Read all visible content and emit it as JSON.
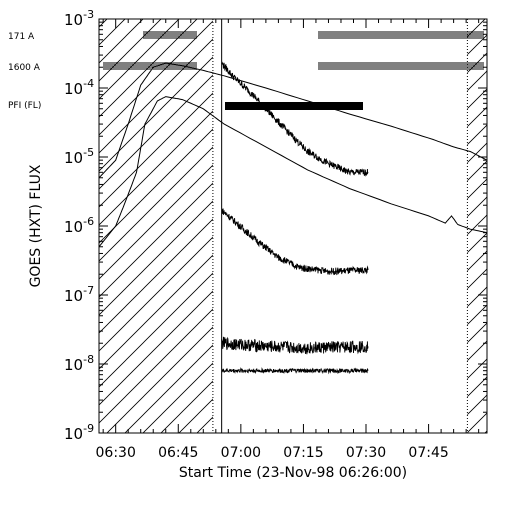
{
  "chart_data": {
    "type": "line",
    "xlabel": "Start Time (23-Nov-98 06:26:00)",
    "ylabel": "GOES (HXT) FLUX",
    "x_range_minutes_after_0626": [
      0,
      93
    ],
    "x_ticks": [
      {
        "label": "06:30",
        "t": 4
      },
      {
        "label": "06:45",
        "t": 19
      },
      {
        "label": "07:00",
        "t": 34
      },
      {
        "label": "07:15",
        "t": 49
      },
      {
        "label": "07:30",
        "t": 64
      },
      {
        "label": "07:45",
        "t": 79
      }
    ],
    "y_scale": "log",
    "y_range": [
      1e-09,
      0.001
    ],
    "y_ticks": [
      {
        "base": "10",
        "exp": "-9",
        "value": 1e-09
      },
      {
        "base": "10",
        "exp": "-8",
        "value": 1e-08
      },
      {
        "base": "10",
        "exp": "-7",
        "value": 1e-07
      },
      {
        "base": "10",
        "exp": "-6",
        "value": 1e-06
      },
      {
        "base": "10",
        "exp": "-5",
        "value": 1e-05
      },
      {
        "base": "10",
        "exp": "-4",
        "value": 0.0001
      },
      {
        "base": "10",
        "exp": "-3",
        "value": 0.001
      }
    ],
    "left_labels": [
      "171 A",
      "1600 A",
      "PFI (FL)"
    ],
    "shaded_intervals_minutes": [
      [
        0,
        27.3
      ],
      [
        88.3,
        93
      ]
    ],
    "hxt_start_minute": 29.4,
    "series": [
      {
        "kind": "goes_high",
        "points": [
          [
            0,
            5e-06
          ],
          [
            4,
            9e-06
          ],
          [
            7,
            3e-05
          ],
          [
            10,
            0.00011
          ],
          [
            13,
            0.0002
          ],
          [
            16,
            0.00023
          ],
          [
            20,
            0.00021
          ],
          [
            25,
            0.00018
          ],
          [
            30,
            0.00015
          ],
          [
            40,
            0.0001
          ],
          [
            50,
            6.5e-05
          ],
          [
            60,
            4.2e-05
          ],
          [
            70,
            2.8e-05
          ],
          [
            80,
            1.8e-05
          ],
          [
            85,
            1.4e-05
          ],
          [
            89,
            1.2e-05
          ],
          [
            93,
            9e-06
          ]
        ]
      },
      {
        "kind": "goes_low",
        "points": [
          [
            0,
            5e-07
          ],
          [
            4,
            1e-06
          ],
          [
            6,
            2e-06
          ],
          [
            9,
            6e-06
          ],
          [
            11,
            3e-05
          ],
          [
            14,
            6.5e-05
          ],
          [
            16,
            7.5e-05
          ],
          [
            20,
            6.8e-05
          ],
          [
            25,
            5e-05
          ],
          [
            30,
            3e-05
          ],
          [
            40,
            1.4e-05
          ],
          [
            50,
            6.5e-06
          ],
          [
            60,
            3.5e-06
          ],
          [
            70,
            2.1e-06
          ],
          [
            79,
            1.4e-06
          ],
          [
            83,
            1.1e-06
          ],
          [
            84.5,
            1.4e-06
          ],
          [
            86,
            1.05e-06
          ],
          [
            89,
            9e-07
          ],
          [
            93,
            8e-07
          ]
        ]
      },
      {
        "kind": "hxt_L",
        "points": [
          [
            29.4,
            0.00023
          ],
          [
            32,
            0.00015
          ],
          [
            36,
            9e-05
          ],
          [
            40,
            5e-05
          ],
          [
            45,
            2.4e-05
          ],
          [
            50,
            1.2e-05
          ],
          [
            55,
            8e-06
          ],
          [
            60,
            6e-06
          ],
          [
            64.5,
            6e-06
          ]
        ]
      },
      {
        "kind": "hxt_M1",
        "points": [
          [
            29.4,
            1.7e-06
          ],
          [
            33,
            1.1e-06
          ],
          [
            38,
            6e-07
          ],
          [
            43,
            3.5e-07
          ],
          [
            48,
            2.5e-07
          ],
          [
            55,
            2.2e-07
          ],
          [
            64.5,
            2.3e-07
          ]
        ]
      },
      {
        "kind": "hxt_M2",
        "points": [
          [
            29.4,
            2e-08
          ],
          [
            40,
            1.8e-08
          ],
          [
            50,
            1.7e-08
          ],
          [
            64.5,
            1.8e-08
          ]
        ]
      },
      {
        "kind": "hxt_H",
        "points": [
          [
            29.4,
            8e-09
          ],
          [
            64.5,
            8e-09
          ]
        ]
      }
    ]
  }
}
